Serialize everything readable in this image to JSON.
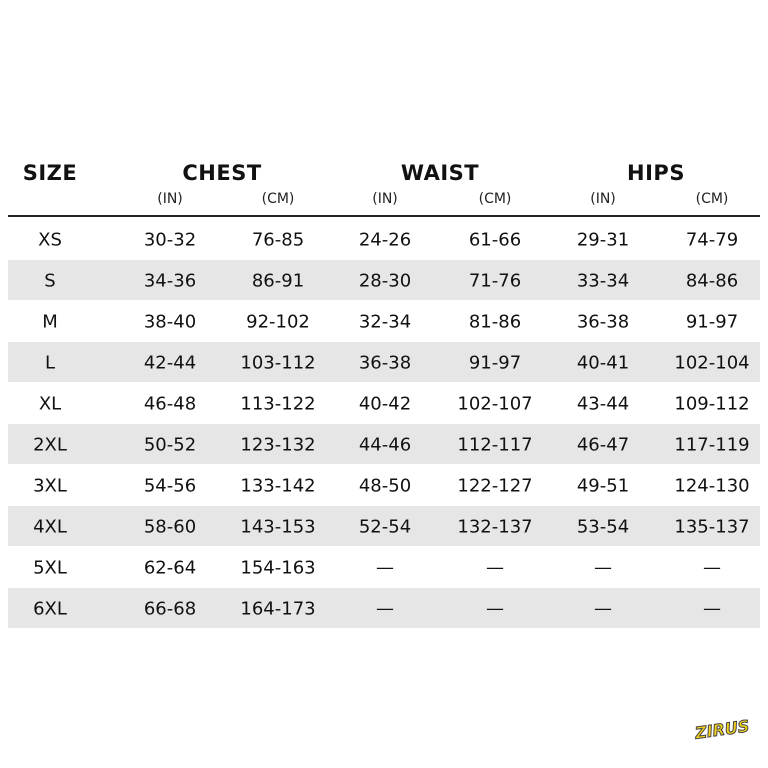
{
  "header": {
    "columns": [
      "SIZE",
      "CHEST",
      "WAIST",
      "HIPS"
    ],
    "units": [
      "(IN)",
      "(CM)",
      "(IN)",
      "(CM)",
      "(IN)",
      "(CM)"
    ]
  },
  "table": {
    "rows": [
      [
        "XS",
        "30-32",
        "76-85",
        "24-26",
        "61-66",
        "29-31",
        "74-79"
      ],
      [
        "S",
        "34-36",
        "86-91",
        "28-30",
        "71-76",
        "33-34",
        "84-86"
      ],
      [
        "M",
        "38-40",
        "92-102",
        "32-34",
        "81-86",
        "36-38",
        "91-97"
      ],
      [
        "L",
        "42-44",
        "103-112",
        "36-38",
        "91-97",
        "40-41",
        "102-104"
      ],
      [
        "XL",
        "46-48",
        "113-122",
        "40-42",
        "102-107",
        "43-44",
        "109-112"
      ],
      [
        "2XL",
        "50-52",
        "123-132",
        "44-46",
        "112-117",
        "46-47",
        "117-119"
      ],
      [
        "3XL",
        "54-56",
        "133-142",
        "48-50",
        "122-127",
        "49-51",
        "124-130"
      ],
      [
        "4XL",
        "58-60",
        "143-153",
        "52-54",
        "132-137",
        "53-54",
        "135-137"
      ],
      [
        "5XL",
        "62-64",
        "154-163",
        "—",
        "—",
        "—",
        "—"
      ],
      [
        "6XL",
        "66-68",
        "164-173",
        "—",
        "—",
        "—",
        "—"
      ]
    ]
  },
  "logo": "ZIRUS"
}
